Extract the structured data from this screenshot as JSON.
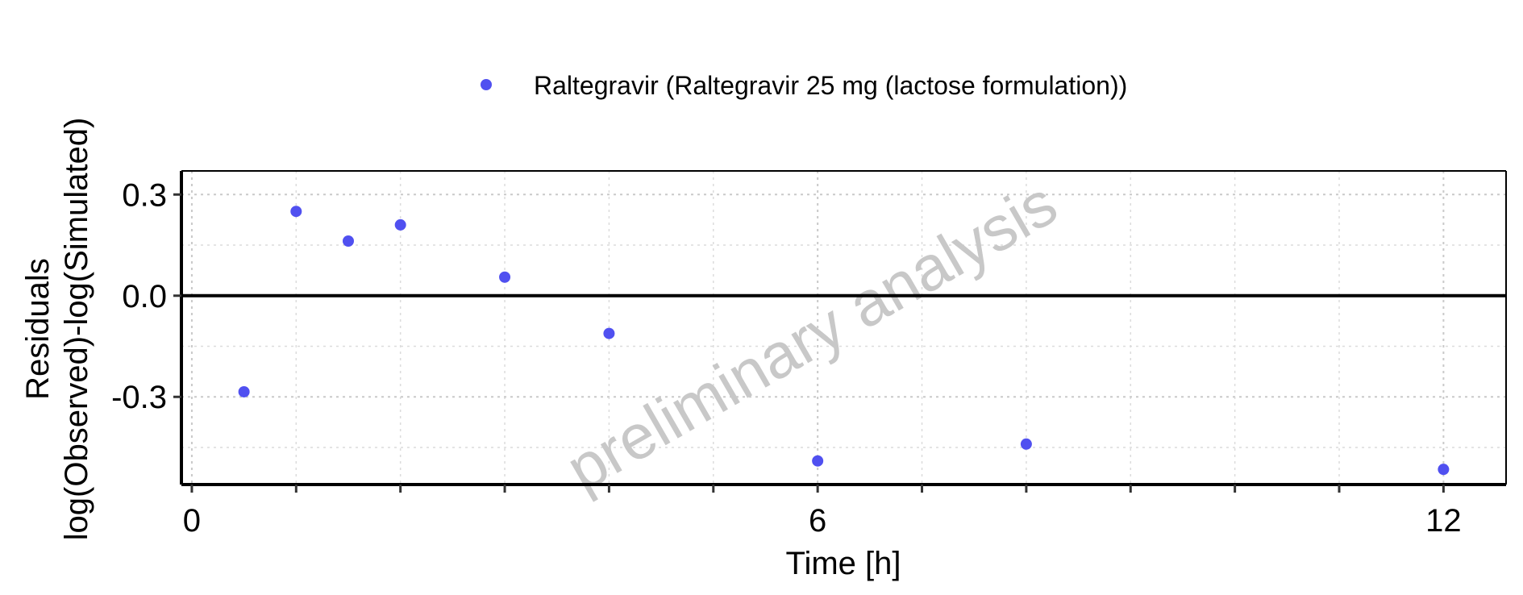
{
  "chart_data": {
    "type": "scatter",
    "title": "",
    "legend": {
      "position": "top",
      "entries": [
        {
          "label": "Raltegravir (Raltegravir 25 mg (lactose formulation))",
          "color": "#5050F0"
        }
      ]
    },
    "xlabel": "Time [h]",
    "ylabel_line1": "Residuals",
    "ylabel_line2": "log(Observed)-log(Simulated)",
    "xlim": [
      -0.1,
      12.6
    ],
    "ylim": [
      -0.56,
      0.37
    ],
    "x_major_ticks": [
      0,
      6,
      12
    ],
    "x_tick_labels": [
      "0",
      "6",
      "12"
    ],
    "x_minor_ticks": [
      1,
      2,
      3,
      4,
      5,
      7,
      8,
      9,
      10,
      11
    ],
    "y_major_ticks": [
      0.3,
      0.0,
      -0.3
    ],
    "y_tick_labels": [
      "0.3",
      "0.0",
      "-0.3"
    ],
    "y_minor_ticks": [
      0.15,
      -0.15,
      -0.45
    ],
    "reference_line_y": 0,
    "grid": true,
    "series": [
      {
        "name": "Raltegravir (Raltegravir 25 mg (lactose formulation))",
        "color": "#5050F0",
        "points": [
          {
            "x": 0.5,
            "y": -0.285
          },
          {
            "x": 1.0,
            "y": 0.25
          },
          {
            "x": 1.5,
            "y": 0.162
          },
          {
            "x": 2.0,
            "y": 0.21
          },
          {
            "x": 3.0,
            "y": 0.055
          },
          {
            "x": 4.0,
            "y": -0.112
          },
          {
            "x": 6.0,
            "y": -0.49
          },
          {
            "x": 8.0,
            "y": -0.44
          },
          {
            "x": 12.0,
            "y": -0.515
          }
        ]
      }
    ],
    "watermark": "preliminary analysis"
  }
}
